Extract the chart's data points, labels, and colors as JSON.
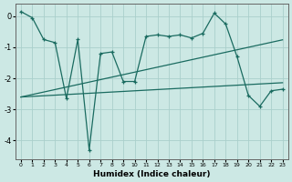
{
  "xlabel": "Humidex (Indice chaleur)",
  "bg_color": "#cce8e4",
  "grid_color": "#aacfcb",
  "line_color": "#1a6b60",
  "x_values": [
    0,
    1,
    2,
    3,
    4,
    5,
    6,
    7,
    8,
    9,
    10,
    11,
    12,
    13,
    14,
    15,
    16,
    17,
    18,
    19,
    20,
    21,
    22,
    23
  ],
  "line1_y": [
    0.15,
    -0.05,
    -0.75,
    -0.85,
    -2.65,
    -0.75,
    -4.3,
    -1.2,
    -1.15,
    -2.1,
    -2.1,
    -0.65,
    -0.6,
    -0.65,
    -0.6,
    -0.7,
    -0.55,
    0.1,
    -0.25,
    -1.3,
    -2.55,
    -2.9,
    -2.4,
    -2.35
  ],
  "line2_y": [
    -2.6,
    -2.58,
    -2.56,
    -2.54,
    -2.52,
    -2.5,
    -2.48,
    -2.46,
    -2.44,
    -2.42,
    -2.4,
    -2.38,
    -2.36,
    -2.34,
    -2.32,
    -2.3,
    -2.28,
    -2.26,
    -2.24,
    -2.22,
    -2.2,
    -2.18,
    -2.16,
    -2.14
  ],
  "line3_y": [
    -2.6,
    -2.52,
    -2.44,
    -2.36,
    -2.28,
    -2.2,
    -2.12,
    -2.04,
    -1.96,
    -1.88,
    -1.8,
    -1.72,
    -1.64,
    -1.56,
    -1.48,
    -1.4,
    -1.32,
    -1.24,
    -1.16,
    -1.08,
    -1.0,
    -0.92,
    -0.84,
    -0.76
  ],
  "ylim": [
    -4.6,
    0.4
  ],
  "yticks": [
    0,
    -1,
    -2,
    -3,
    -4
  ],
  "xlim": [
    -0.5,
    23.5
  ],
  "xticks": [
    0,
    1,
    2,
    3,
    4,
    5,
    6,
    7,
    8,
    9,
    10,
    11,
    12,
    13,
    14,
    15,
    16,
    17,
    18,
    19,
    20,
    21,
    22,
    23
  ]
}
